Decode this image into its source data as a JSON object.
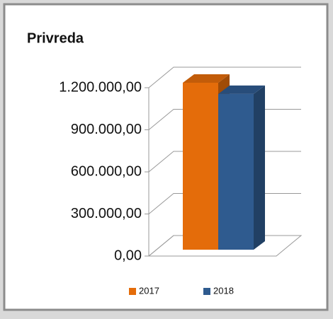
{
  "chart_data": {
    "type": "bar3d",
    "title": "Privreda",
    "categories": [
      null
    ],
    "series": [
      {
        "name": "2017",
        "color": "#e46c0a",
        "values": [
          1190000
        ]
      },
      {
        "name": "2018",
        "color": "#2f5b8f",
        "values": [
          1110000
        ]
      }
    ],
    "ylim": [
      0,
      1200000
    ],
    "yticks": [
      {
        "value": 0,
        "label": "0,00"
      },
      {
        "value": 300000,
        "label": "300.000,00"
      },
      {
        "value": 600000,
        "label": "600.000,00"
      },
      {
        "value": 900000,
        "label": "900.000,00"
      },
      {
        "value": 1200000,
        "label": "1.200.000,00"
      }
    ],
    "grid": true,
    "legend": "bottom"
  }
}
